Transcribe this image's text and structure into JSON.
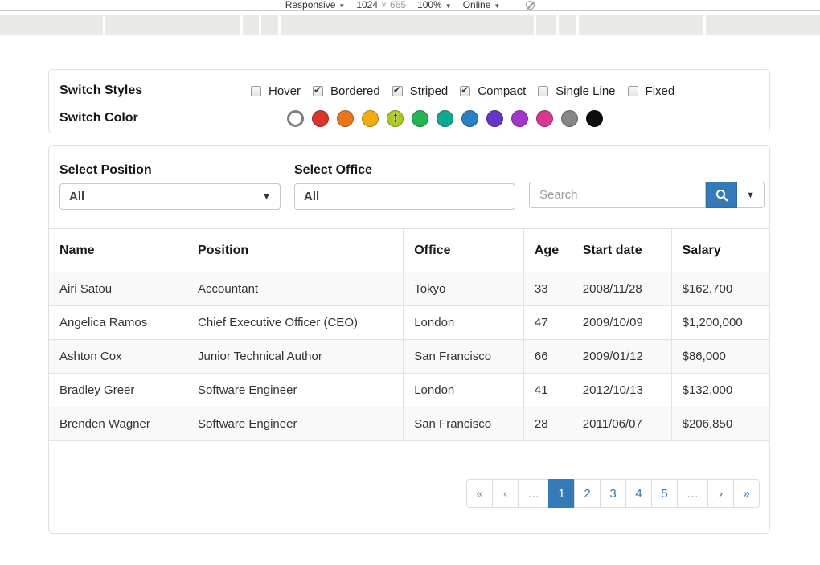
{
  "devtools": {
    "device_mode": "Responsive",
    "viewport_width": "1024",
    "dimension_separator": "×",
    "viewport_height": "665",
    "zoom_level": "100%",
    "network_status": "Online",
    "caret": "▼"
  },
  "styles_panel": {
    "styles_label": "Switch Styles",
    "color_label": "Switch Color",
    "style_toggles": [
      {
        "label": "Hover",
        "checked": false
      },
      {
        "label": "Bordered",
        "checked": true
      },
      {
        "label": "Striped",
        "checked": true
      },
      {
        "label": "Compact",
        "checked": true
      },
      {
        "label": "Single Line",
        "checked": false
      },
      {
        "label": "Fixed",
        "checked": false
      }
    ],
    "color_swatches": [
      {
        "name": "white-outline",
        "hex": "#ffffff"
      },
      {
        "name": "red",
        "hex": "#d9352a"
      },
      {
        "name": "orange",
        "hex": "#e8761f"
      },
      {
        "name": "amber",
        "hex": "#f0ad0e"
      },
      {
        "name": "yellow-green",
        "hex": "#afc920"
      },
      {
        "name": "green",
        "hex": "#26b356"
      },
      {
        "name": "teal",
        "hex": "#0fa891"
      },
      {
        "name": "blue",
        "hex": "#2b7fc4"
      },
      {
        "name": "violet",
        "hex": "#6535cc"
      },
      {
        "name": "purple",
        "hex": "#a335cc"
      },
      {
        "name": "pink",
        "hex": "#d93790"
      },
      {
        "name": "grey",
        "hex": "#868686"
      },
      {
        "name": "black",
        "hex": "#0d0d0d"
      }
    ]
  },
  "filters": {
    "position_label": "Select Position",
    "position_value": "All",
    "office_label": "Select Office",
    "office_value": "All",
    "search_placeholder": "Search"
  },
  "table": {
    "columns": [
      "Name",
      "Position",
      "Office",
      "Age",
      "Start date",
      "Salary"
    ],
    "rows": [
      [
        "Airi Satou",
        "Accountant",
        "Tokyo",
        "33",
        "2008/11/28",
        "$162,700"
      ],
      [
        "Angelica Ramos",
        "Chief Executive Officer (CEO)",
        "London",
        "47",
        "2009/10/09",
        "$1,200,000"
      ],
      [
        "Ashton Cox",
        "Junior Technical Author",
        "San Francisco",
        "66",
        "2009/01/12",
        "$86,000"
      ],
      [
        "Bradley Greer",
        "Software Engineer",
        "London",
        "41",
        "2012/10/13",
        "$132,000"
      ],
      [
        "Brenden Wagner",
        "Software Engineer",
        "San Francisco",
        "28",
        "2011/06/07",
        "$206,850"
      ]
    ]
  },
  "pagination": {
    "items": [
      {
        "label": "«",
        "state": "disabled",
        "name": "first-page"
      },
      {
        "label": "‹",
        "state": "disabled",
        "name": "prev-page"
      },
      {
        "label": "…",
        "state": "disabled",
        "name": "ellipsis-left"
      },
      {
        "label": "1",
        "state": "active",
        "name": "page-1"
      },
      {
        "label": "2",
        "state": "normal",
        "name": "page-2"
      },
      {
        "label": "3",
        "state": "normal",
        "name": "page-3"
      },
      {
        "label": "4",
        "state": "normal",
        "name": "page-4"
      },
      {
        "label": "5",
        "state": "normal",
        "name": "page-5"
      },
      {
        "label": "…",
        "state": "disabled",
        "name": "ellipsis-right"
      },
      {
        "label": "›",
        "state": "normal",
        "name": "next-page"
      },
      {
        "label": "»",
        "state": "normal",
        "name": "last-page"
      }
    ]
  },
  "accent": {
    "primary_blue": "#337ab7",
    "border_grey": "#e0e0e0"
  }
}
